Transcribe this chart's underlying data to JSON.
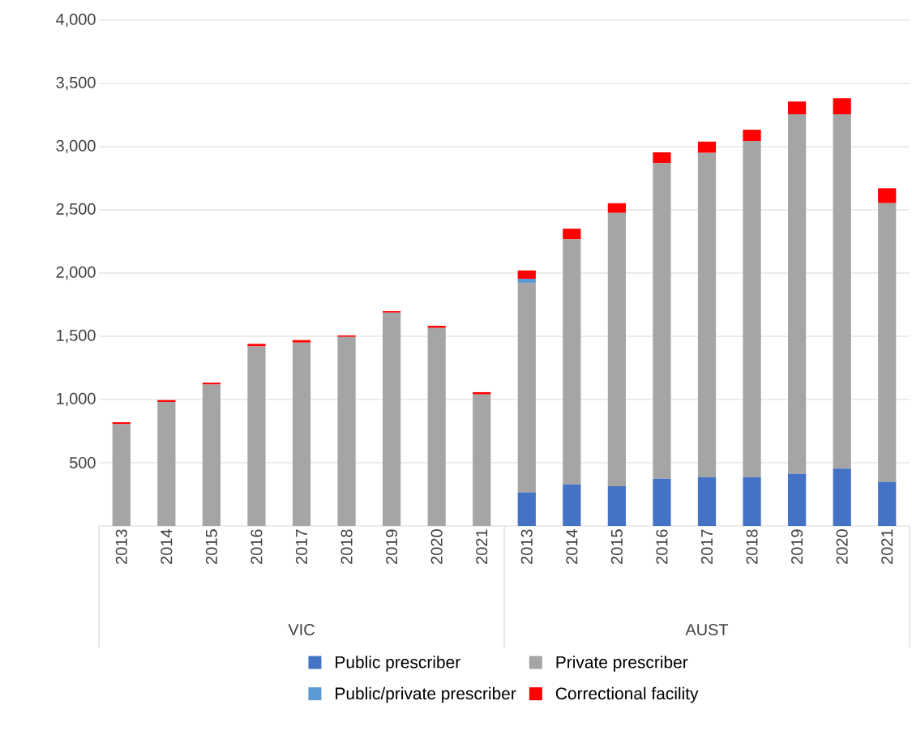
{
  "chart_data": {
    "type": "bar",
    "stacked": true,
    "categories": [
      "2013",
      "2014",
      "2015",
      "2016",
      "2017",
      "2018",
      "2019",
      "2020",
      "2021",
      "2013",
      "2014",
      "2015",
      "2016",
      "2017",
      "2018",
      "2019",
      "2020",
      "2021"
    ],
    "annotations": [
      "VIC",
      "AUST"
    ],
    "series": [
      {
        "name": "Public prescriber",
        "color": "#4472c4",
        "values": [
          null,
          null,
          null,
          null,
          null,
          null,
          null,
          null,
          null,
          265,
          329,
          314,
          374,
          387,
          387,
          412,
          453,
          348
        ]
      },
      {
        "name": "Private prescriber",
        "color": "#a5a5a5",
        "values": [
          805,
          980,
          1118,
          1420,
          1450,
          1495,
          1687,
          1566,
          1040,
          1656,
          1938,
          2162,
          2496,
          2564,
          2658,
          2844,
          2803,
          2205
        ]
      },
      {
        "name": "Public/private prescriber",
        "color": "#5b9bd5",
        "values": [
          null,
          null,
          null,
          null,
          null,
          null,
          null,
          null,
          null,
          34,
          null,
          null,
          null,
          null,
          null,
          null,
          null,
          null
        ]
      },
      {
        "name": "Correctional facility",
        "color": "#ff0000",
        "values": [
          15,
          15,
          15,
          20,
          20,
          12,
          12,
          17,
          18,
          66,
          84,
          77,
          85,
          89,
          89,
          101,
          127,
          118
        ]
      }
    ],
    "ylim": [
      0,
      4000
    ],
    "yticks": [
      500,
      {
        "value": 1000,
        "label": "1,000"
      },
      {
        "value": 1500,
        "label": "1,500"
      },
      {
        "value": 2000,
        "label": "2,000"
      },
      {
        "value": 2500,
        "label": "2,500"
      },
      {
        "value": 3000,
        "label": "3,000"
      },
      {
        "value": 3500,
        "label": "3,500"
      },
      {
        "value": 4000,
        "label": "4,000"
      }
    ],
    "grid": "y",
    "legend": "bottom"
  }
}
